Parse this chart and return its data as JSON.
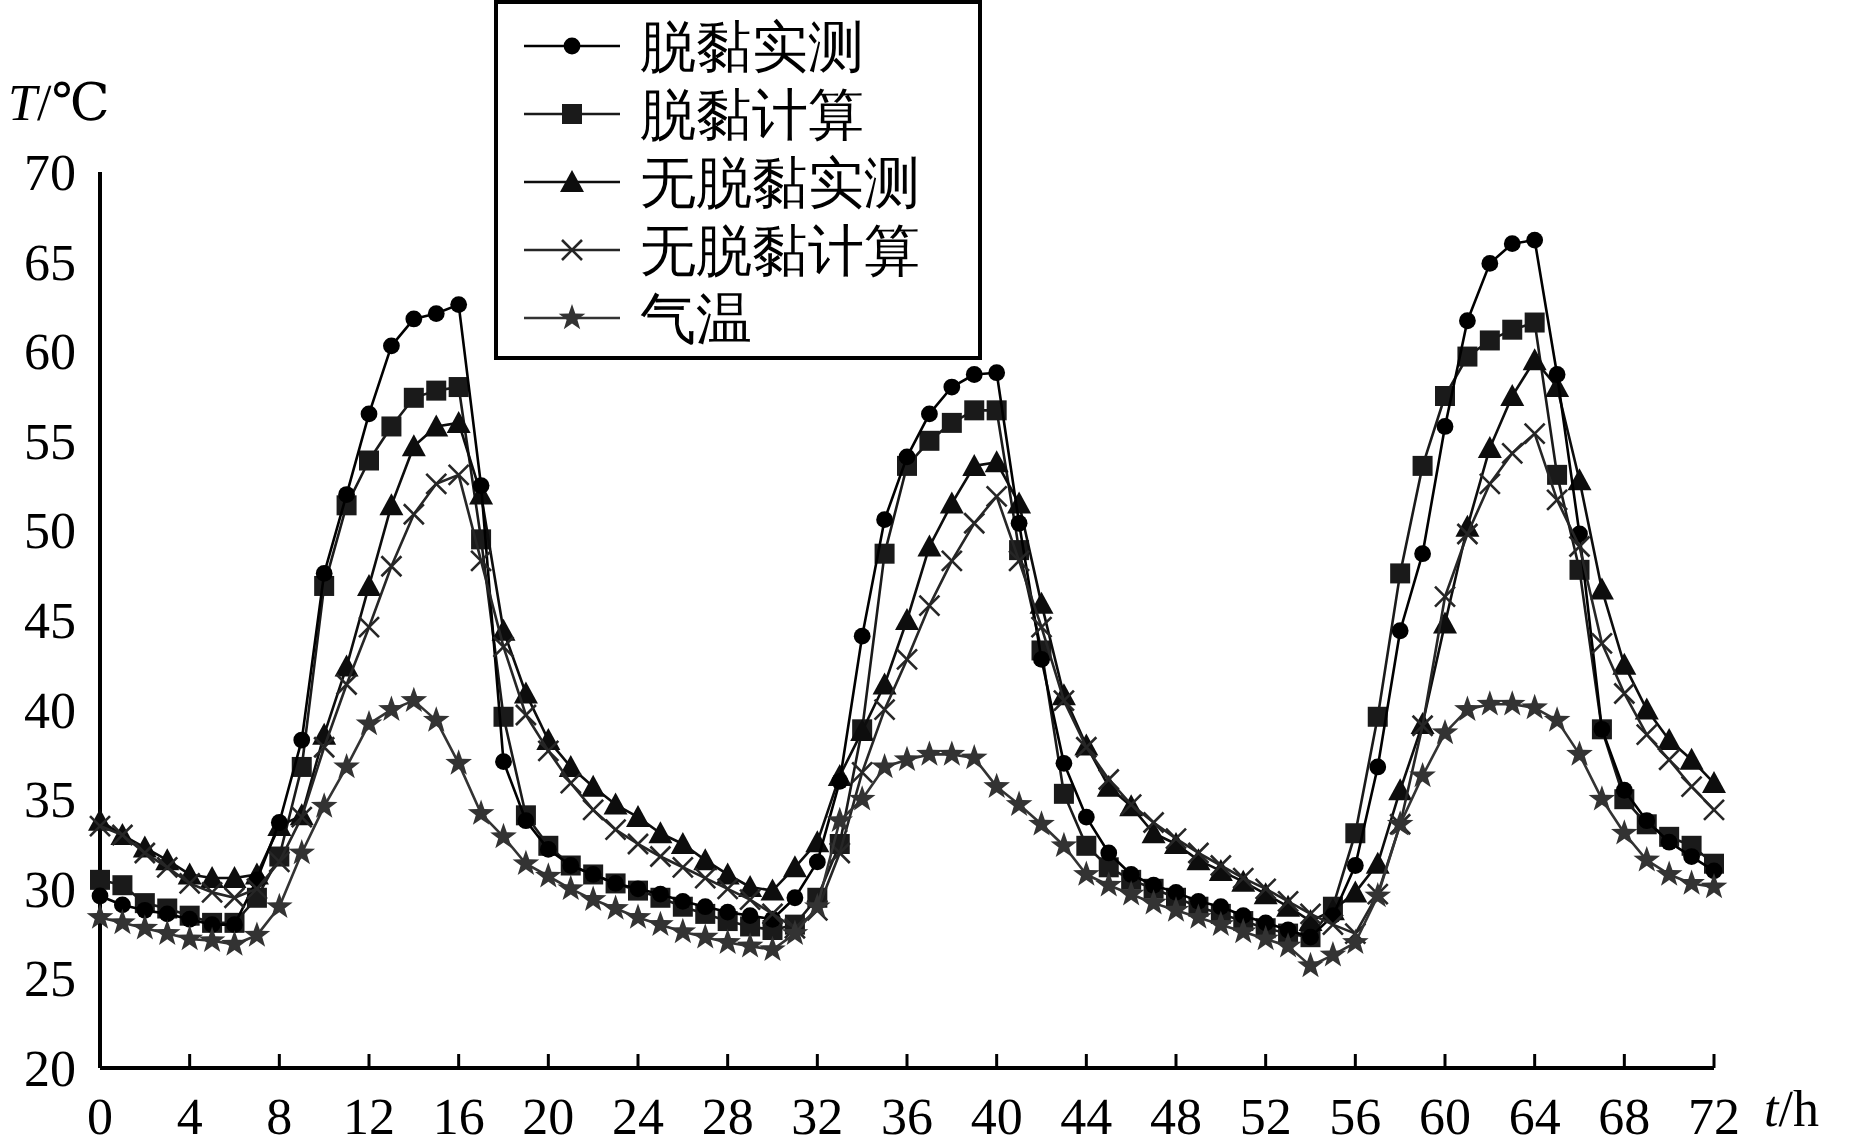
{
  "chart_data": {
    "type": "line",
    "xlabel": "*t*/h",
    "ylabel": "*T*/℃",
    "x": [
      0,
      1,
      2,
      3,
      4,
      5,
      6,
      7,
      8,
      9,
      10,
      11,
      12,
      13,
      14,
      15,
      16,
      17,
      18,
      19,
      20,
      21,
      22,
      23,
      24,
      25,
      26,
      27,
      28,
      29,
      30,
      31,
      32,
      33,
      34,
      35,
      36,
      37,
      38,
      39,
      40,
      41,
      42,
      43,
      44,
      45,
      46,
      47,
      48,
      49,
      50,
      51,
      52,
      53,
      54,
      55,
      56,
      57,
      58,
      59,
      60,
      61,
      62,
      63,
      64,
      65,
      66,
      67,
      68,
      69,
      70,
      71,
      72
    ],
    "xlim": [
      0,
      72
    ],
    "xticks": [
      0,
      4,
      8,
      12,
      16,
      20,
      24,
      28,
      32,
      36,
      40,
      44,
      48,
      52,
      56,
      60,
      64,
      68,
      72
    ],
    "ylim": [
      20,
      70
    ],
    "yticks": [
      20,
      25,
      30,
      35,
      40,
      45,
      50,
      55,
      60,
      65,
      70
    ],
    "grid": false,
    "legend": "top",
    "line_style": "solid",
    "series": [
      {
        "name": "脱黏实测",
        "color": "#000000",
        "marker": "circle",
        "values": [
          29.6,
          29.1,
          28.8,
          28.6,
          28.3,
          28.0,
          28.0,
          30.5,
          33.7,
          38.3,
          47.6,
          52.0,
          56.5,
          60.3,
          61.8,
          62.1,
          62.6,
          52.5,
          37.1,
          33.8,
          32.2,
          31.3,
          30.8,
          30.3,
          30.0,
          29.7,
          29.3,
          29.0,
          28.7,
          28.5,
          28.3,
          29.5,
          31.5,
          36.0,
          44.1,
          50.6,
          54.1,
          56.5,
          58.0,
          58.7,
          58.8,
          50.4,
          42.8,
          37.0,
          34.0,
          32.0,
          30.8,
          30.2,
          29.8,
          29.3,
          29.0,
          28.5,
          28.1,
          27.7,
          27.3,
          28.5,
          31.3,
          36.8,
          44.4,
          48.7,
          55.8,
          61.7,
          64.9,
          66.0,
          66.2,
          58.7,
          49.8,
          38.9,
          35.5,
          33.8,
          32.6,
          31.8,
          31.0
        ]
      },
      {
        "name": "脱黏计算",
        "color": "#1a1a1a",
        "marker": "square",
        "values": [
          30.5,
          30.2,
          29.2,
          28.9,
          28.5,
          28.1,
          28.1,
          29.5,
          31.8,
          36.8,
          46.9,
          51.4,
          53.9,
          55.8,
          57.4,
          57.8,
          58.0,
          49.5,
          39.6,
          34.1,
          32.4,
          31.3,
          30.8,
          30.3,
          29.9,
          29.5,
          29.0,
          28.6,
          28.2,
          27.9,
          27.7,
          28.0,
          29.5,
          32.5,
          38.9,
          48.7,
          53.6,
          55.0,
          56.0,
          56.7,
          56.7,
          48.9,
          43.3,
          35.3,
          32.4,
          31.2,
          30.5,
          30.0,
          29.5,
          29.0,
          28.6,
          28.2,
          27.8,
          27.5,
          27.3,
          29.0,
          33.1,
          39.6,
          47.6,
          53.6,
          57.5,
          59.7,
          60.6,
          61.2,
          61.6,
          53.1,
          47.8,
          38.9,
          35.0,
          33.6,
          32.9,
          32.4,
          31.4
        ]
      },
      {
        "name": "无脱黏实测",
        "color": "#0d0d0d",
        "marker": "triangle",
        "values": [
          33.8,
          33.0,
          32.3,
          31.6,
          30.8,
          30.6,
          30.6,
          30.8,
          33.5,
          34.1,
          38.6,
          42.4,
          46.9,
          51.4,
          54.7,
          55.8,
          56.0,
          52.0,
          44.4,
          40.9,
          38.3,
          36.8,
          35.7,
          34.7,
          34.0,
          33.1,
          32.5,
          31.6,
          30.8,
          30.1,
          29.9,
          31.2,
          32.6,
          36.3,
          38.8,
          41.4,
          45.0,
          49.1,
          51.5,
          53.6,
          53.8,
          51.5,
          45.9,
          40.8,
          38.0,
          35.7,
          34.6,
          33.1,
          32.5,
          31.6,
          31.0,
          30.4,
          29.7,
          29.0,
          28.2,
          28.8,
          29.8,
          31.4,
          35.5,
          39.2,
          44.8,
          50.2,
          54.6,
          57.5,
          59.5,
          58.0,
          52.8,
          46.7,
          42.5,
          40.0,
          38.3,
          37.2,
          35.9
        ]
      },
      {
        "name": "无脱黏计算",
        "color": "#262626",
        "marker": "cross",
        "values": [
          33.5,
          33.0,
          32.0,
          31.2,
          30.3,
          29.8,
          29.5,
          30.0,
          31.5,
          34.0,
          37.9,
          41.4,
          44.6,
          48.0,
          50.9,
          52.6,
          53.1,
          48.3,
          43.5,
          39.7,
          37.7,
          35.9,
          34.4,
          33.3,
          32.5,
          31.8,
          31.2,
          30.6,
          30.0,
          29.4,
          28.6,
          27.8,
          28.8,
          32.0,
          36.5,
          40.0,
          42.8,
          45.8,
          48.3,
          50.4,
          51.9,
          48.3,
          44.6,
          40.5,
          37.9,
          36.1,
          34.7,
          33.7,
          32.8,
          32.0,
          31.3,
          30.6,
          30.0,
          29.3,
          28.6,
          28.0,
          27.5,
          29.7,
          33.6,
          39.1,
          46.3,
          49.8,
          52.6,
          54.3,
          55.4,
          51.7,
          49.1,
          43.7,
          40.9,
          38.6,
          37.2,
          35.7,
          34.4
        ]
      },
      {
        "name": "气温",
        "color": "#333333",
        "marker": "star",
        "values": [
          28.4,
          28.1,
          27.8,
          27.5,
          27.2,
          27.1,
          26.9,
          27.4,
          29.0,
          32.0,
          34.6,
          36.8,
          39.2,
          40.0,
          40.5,
          39.4,
          37.0,
          34.2,
          32.9,
          31.4,
          30.7,
          30.0,
          29.4,
          28.9,
          28.4,
          28.0,
          27.6,
          27.3,
          27.0,
          26.8,
          26.6,
          27.5,
          29.0,
          33.8,
          35.0,
          36.8,
          37.2,
          37.5,
          37.5,
          37.3,
          35.7,
          34.7,
          33.6,
          32.4,
          30.8,
          30.2,
          29.7,
          29.2,
          28.8,
          28.4,
          28.0,
          27.6,
          27.2,
          26.8,
          25.7,
          26.3,
          27.0,
          29.6,
          33.6,
          36.3,
          38.7,
          40.0,
          40.3,
          40.3,
          40.1,
          39.4,
          37.5,
          35.0,
          33.1,
          31.6,
          30.8,
          30.3,
          30.1
        ]
      }
    ]
  }
}
